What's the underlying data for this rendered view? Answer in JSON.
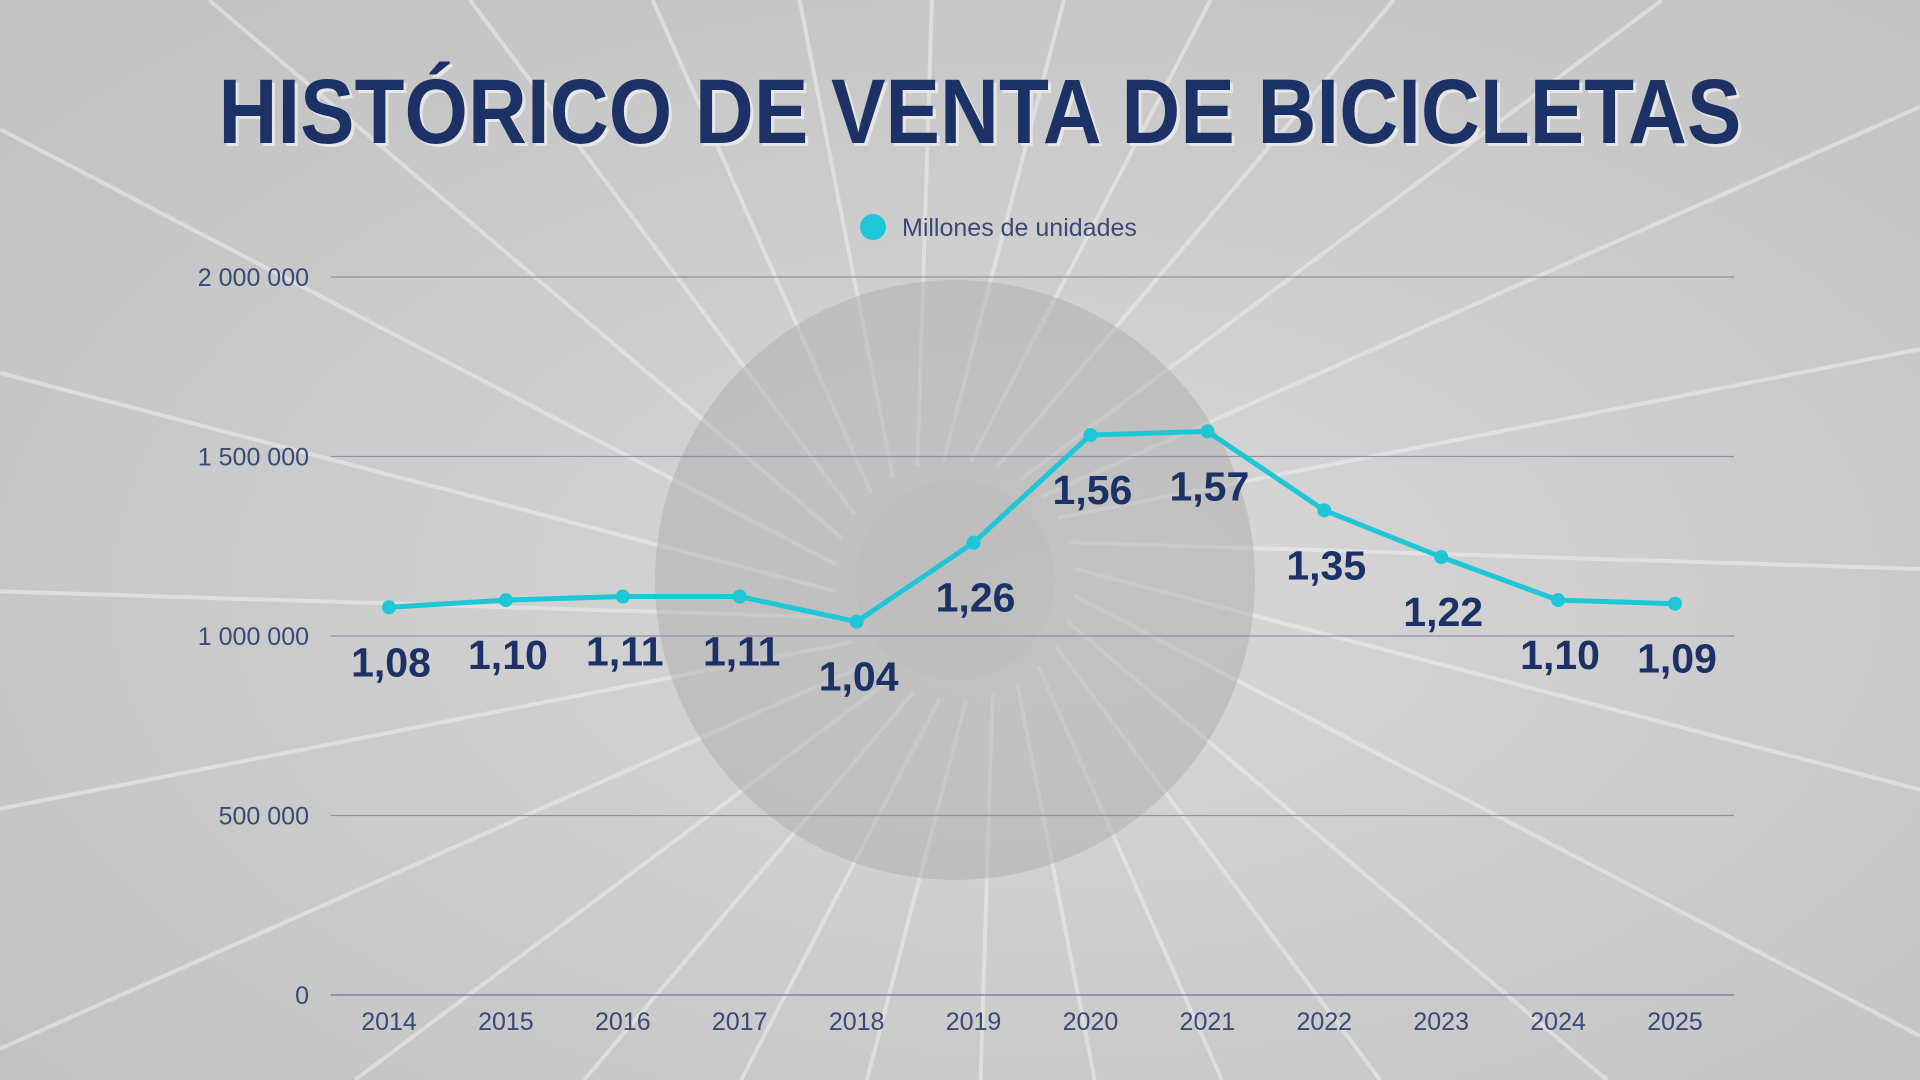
{
  "colors": {
    "title": "#1c3166",
    "line": "#1ec6d6",
    "label": "#1c3166",
    "axis": "#3a4a78",
    "grid": "#8d93a8"
  },
  "chart_data": {
    "type": "line",
    "title": "HISTÓRICO DE VENTA DE BICICLETAS",
    "legend": {
      "position": "top",
      "entries": [
        "Millones de unidades"
      ]
    },
    "grid": true,
    "ylim": [
      0,
      2000000
    ],
    "yticks": [
      0,
      500000,
      1000000,
      1500000,
      2000000
    ],
    "ytick_labels": [
      "0",
      "500 000",
      "1 000 000",
      "1 500 000",
      "2 000 000"
    ],
    "categories": [
      "2014",
      "2015",
      "2016",
      "2017",
      "2018",
      "2019",
      "2020",
      "2021",
      "2022",
      "2023",
      "2024",
      "2025"
    ],
    "series": [
      {
        "name": "Millones de unidades",
        "values": [
          1080000,
          1100000,
          1110000,
          1110000,
          1040000,
          1260000,
          1560000,
          1570000,
          1350000,
          1220000,
          1100000,
          1090000
        ],
        "data_labels": [
          "1,08",
          "1,10",
          "1,11",
          "1,11",
          "1,04",
          "1,26",
          "1,56",
          "1,57",
          "1,35",
          "1,22",
          "1,10",
          "1,09"
        ]
      }
    ]
  }
}
